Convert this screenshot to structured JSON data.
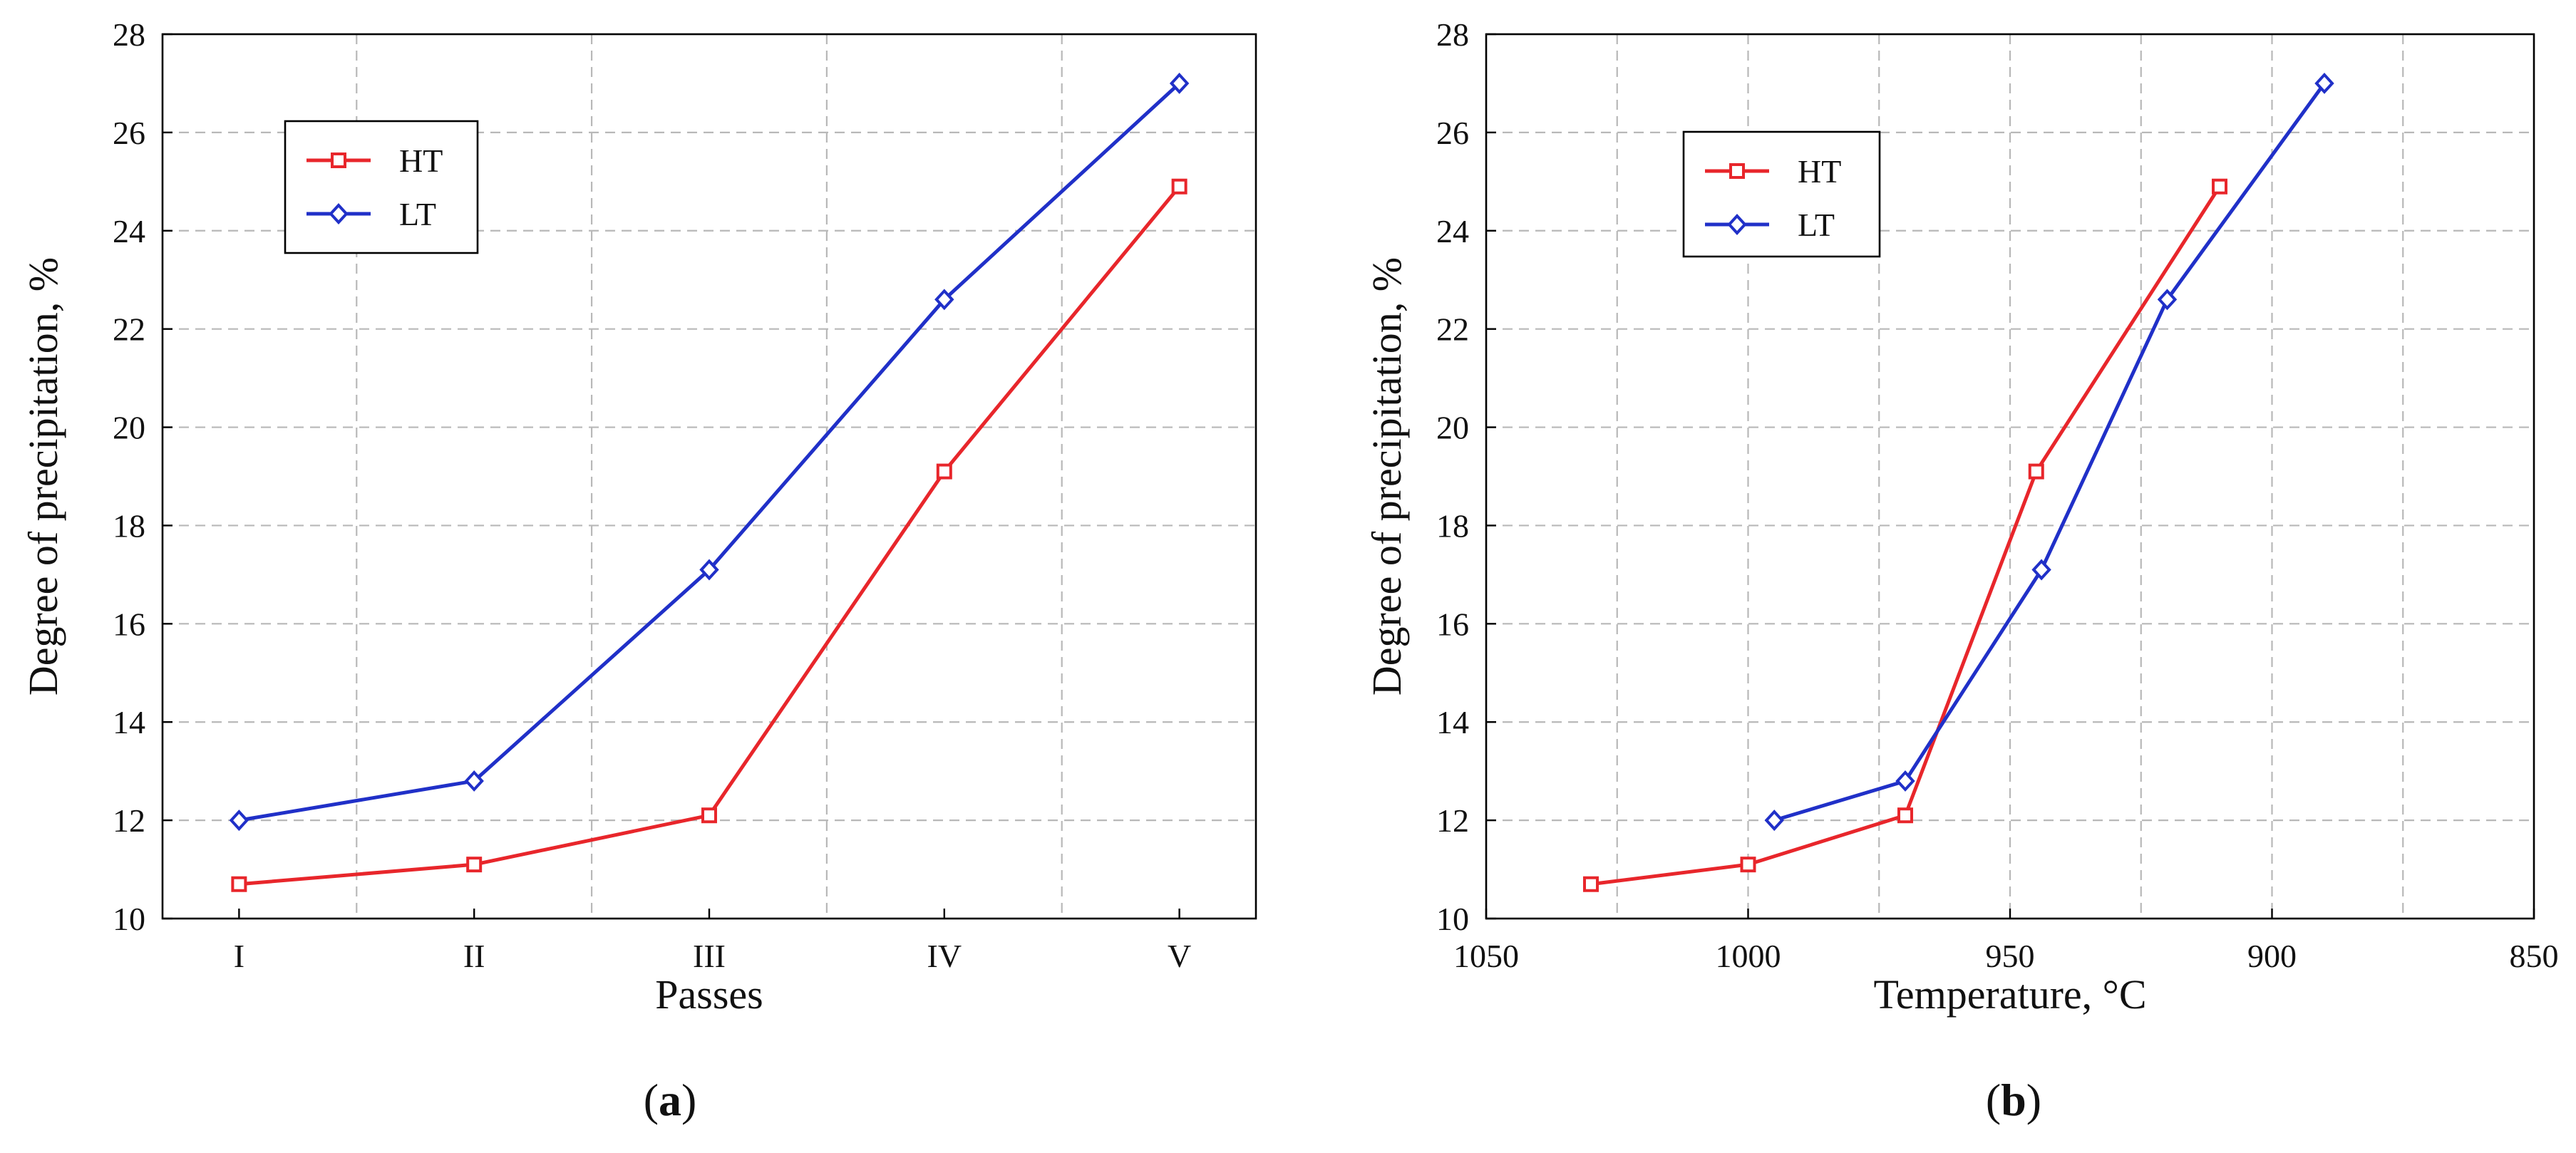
{
  "chart_data": [
    {
      "type": "line",
      "panel_label": "a",
      "title": "",
      "xlabel": "Passes",
      "ylabel": "Degree of precipitation,  %",
      "categories": [
        "I",
        "II",
        "III",
        "IV",
        "V"
      ],
      "ylim": [
        10,
        28
      ],
      "yticks": [
        10,
        12,
        14,
        16,
        18,
        20,
        22,
        24,
        26,
        28
      ],
      "grid": true,
      "legend_position": "top-left",
      "series": [
        {
          "name": "HT",
          "color": "#e8262b",
          "marker": "square",
          "values": [
            10.7,
            11.1,
            12.1,
            19.1,
            24.9
          ]
        },
        {
          "name": "LT",
          "color": "#2030c8",
          "marker": "diamond",
          "values": [
            12.0,
            12.8,
            17.1,
            22.6,
            27.0
          ]
        }
      ]
    },
    {
      "type": "line",
      "panel_label": "b",
      "title": "",
      "xlabel": "Temperature, °C",
      "ylabel": "Degree of precipitation,  %",
      "xlim": [
        1050,
        850
      ],
      "xticks": [
        1050,
        1000,
        950,
        900,
        850
      ],
      "ylim": [
        10,
        28
      ],
      "yticks": [
        10,
        12,
        14,
        16,
        18,
        20,
        22,
        24,
        26,
        28
      ],
      "grid": true,
      "legend_position": "top-left",
      "series": [
        {
          "name": "HT",
          "color": "#e8262b",
          "marker": "square",
          "x": [
            1030,
            1000,
            970,
            945,
            910
          ],
          "values": [
            10.7,
            11.1,
            12.1,
            19.1,
            24.9
          ]
        },
        {
          "name": "LT",
          "color": "#2030c8",
          "marker": "diamond",
          "x": [
            995,
            970,
            944,
            920,
            890
          ],
          "values": [
            12.0,
            12.8,
            17.1,
            22.6,
            27.0
          ]
        }
      ]
    }
  ]
}
